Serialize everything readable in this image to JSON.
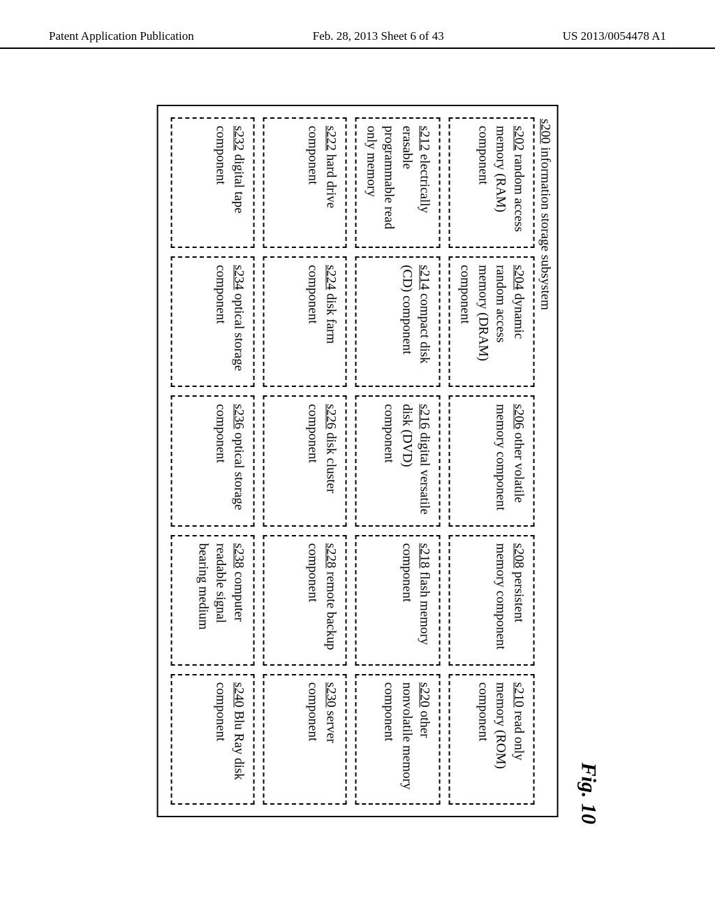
{
  "header": {
    "left": "Patent Application Publication",
    "center": "Feb. 28, 2013  Sheet 6 of 43",
    "right": "US 2013/0054478 A1"
  },
  "figure": {
    "label": "Fig. 10",
    "outer_ref": "s200",
    "outer_title": "information storage subsystem",
    "cells": [
      {
        "ref": "s202",
        "text": "random access memory (RAM) component"
      },
      {
        "ref": "s204",
        "text": "dynamic random access memory (DRAM) component"
      },
      {
        "ref": "s206",
        "text": "other volatile memory component"
      },
      {
        "ref": "s208",
        "text": "persistent memory component"
      },
      {
        "ref": "s210",
        "text": "read only memory (ROM) component"
      },
      {
        "ref": "s212",
        "text": "electrically erasable programmable read only memory"
      },
      {
        "ref": "s214",
        "text": "compact disk (CD) component"
      },
      {
        "ref": "s216",
        "text": "digital versatile disk (DVD) component"
      },
      {
        "ref": "s218",
        "text": "flash memory component"
      },
      {
        "ref": "s220",
        "text": "other nonvolatile memory component"
      },
      {
        "ref": "s222",
        "text": "hard drive component"
      },
      {
        "ref": "s224",
        "text": "disk farm component"
      },
      {
        "ref": "s226",
        "text": "disk cluster component"
      },
      {
        "ref": "s228",
        "text": "remote backup component"
      },
      {
        "ref": "s230",
        "text": "server component"
      },
      {
        "ref": "s232",
        "text": "digital tape component"
      },
      {
        "ref": "s234",
        "text": "optical storage component"
      },
      {
        "ref": "s236",
        "text": "optical storage component"
      },
      {
        "ref": "s238",
        "text": "computer readable signal bearing medium"
      },
      {
        "ref": "s240",
        "text": "Blu Ray disk component"
      }
    ]
  }
}
